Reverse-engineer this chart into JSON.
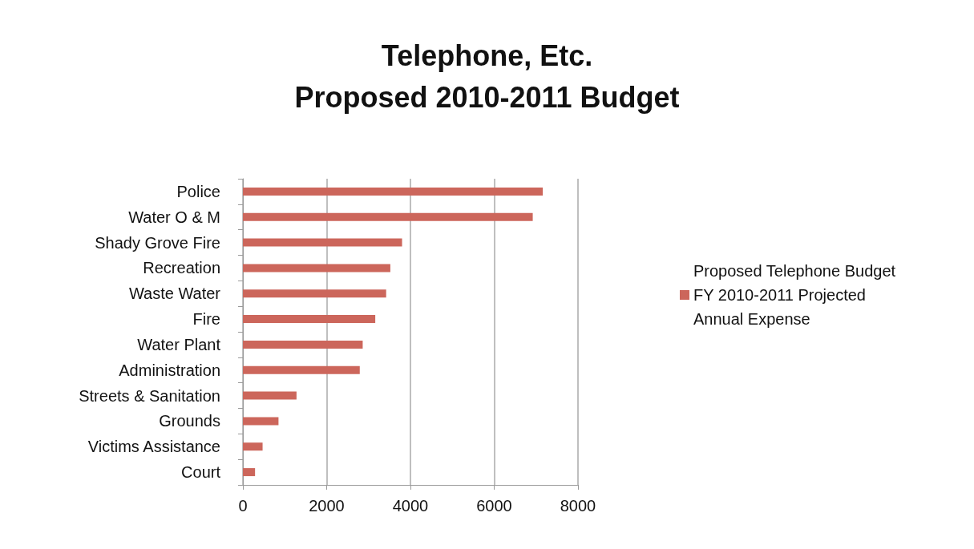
{
  "chart_data": {
    "type": "bar",
    "orientation": "horizontal",
    "title": "Telephone, Etc.\nProposed 2010-2011 Budget",
    "categories": [
      "Police",
      "Water O & M",
      "Shady Grove Fire",
      "Recreation",
      "Waste Water",
      "Fire",
      "Water Plant",
      "Administration",
      "Streets & Sanitation",
      "Grounds",
      "Victims Assistance",
      "Court"
    ],
    "series": [
      {
        "name": "Proposed Telephone Budget\nFY 2010-2011 Projected\nAnnual Expense",
        "color": "#cc665b",
        "values": [
          7160,
          6920,
          3800,
          3520,
          3420,
          3160,
          2860,
          2790,
          1280,
          850,
          470,
          290
        ]
      }
    ],
    "xlim": [
      0,
      8000
    ],
    "xticks": [
      0,
      2000,
      4000,
      6000,
      8000
    ],
    "grid": "x",
    "legend": "right"
  }
}
